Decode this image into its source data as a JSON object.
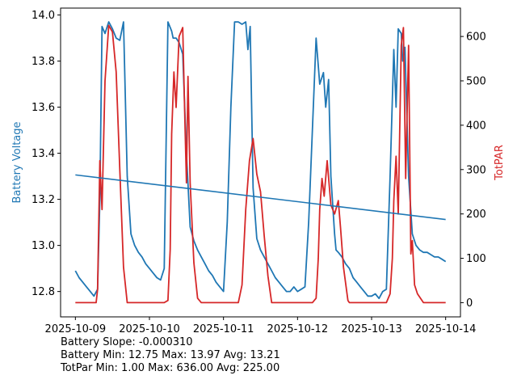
{
  "chart_data": {
    "type": "line",
    "title": "",
    "xlabel": "",
    "x_ticks": [
      "2025-10-09",
      "2025-10-10",
      "2025-10-11",
      "2025-10-12",
      "2025-10-13",
      "2025-10-14"
    ],
    "left_axis": {
      "label": "Battery Voltage",
      "color": "#1f77b4",
      "ylim": [
        12.69,
        14.03
      ],
      "ticks": [
        12.8,
        13.0,
        13.2,
        13.4,
        13.6,
        13.8,
        14.0
      ],
      "tick_labels": [
        "12.8",
        "13.0",
        "13.2",
        "13.4",
        "13.6",
        "13.8",
        "14.0"
      ]
    },
    "right_axis": {
      "label": "TotPAR",
      "color": "#d62728",
      "ylim": [
        -32,
        664
      ],
      "ticks": [
        0,
        100,
        200,
        300,
        400,
        500,
        600
      ],
      "tick_labels": [
        "0",
        "100",
        "200",
        "300",
        "400",
        "500",
        "600"
      ]
    },
    "xlim_days": [
      -0.2,
      5.2
    ],
    "series": [
      {
        "name": "Battery Voltage",
        "axis": "left",
        "color": "#1f77b4",
        "x_days": [
          0.0,
          0.05,
          0.1,
          0.15,
          0.2,
          0.25,
          0.3,
          0.33,
          0.36,
          0.4,
          0.45,
          0.5,
          0.55,
          0.6,
          0.65,
          0.7,
          0.75,
          0.8,
          0.85,
          0.9,
          0.95,
          1.0,
          1.05,
          1.1,
          1.15,
          1.2,
          1.25,
          1.3,
          1.32,
          1.36,
          1.4,
          1.45,
          1.5,
          1.55,
          1.6,
          1.65,
          1.7,
          1.75,
          1.8,
          1.85,
          1.9,
          1.95,
          2.0,
          2.05,
          2.1,
          2.15,
          2.2,
          2.25,
          2.3,
          2.33,
          2.36,
          2.4,
          2.45,
          2.5,
          2.55,
          2.6,
          2.65,
          2.7,
          2.75,
          2.8,
          2.85,
          2.9,
          2.95,
          3.0,
          3.05,
          3.1,
          3.15,
          3.2,
          3.25,
          3.3,
          3.35,
          3.38,
          3.42,
          3.45,
          3.5,
          3.52,
          3.55,
          3.6,
          3.65,
          3.7,
          3.75,
          3.8,
          3.85,
          3.9,
          3.95,
          4.0,
          4.05,
          4.1,
          4.15,
          4.2,
          4.25,
          4.3,
          4.33,
          4.36,
          4.4,
          4.42,
          4.45,
          4.5,
          4.55,
          4.6,
          4.65,
          4.7,
          4.75,
          4.8,
          4.85,
          4.9,
          4.95,
          5.0
        ],
        "values": [
          12.89,
          12.86,
          12.84,
          12.82,
          12.8,
          12.78,
          12.81,
          13.2,
          13.95,
          13.92,
          13.97,
          13.94,
          13.9,
          13.89,
          13.97,
          13.3,
          13.05,
          13.0,
          12.97,
          12.95,
          12.92,
          12.9,
          12.88,
          12.86,
          12.85,
          12.9,
          13.97,
          13.93,
          13.9,
          13.9,
          13.88,
          13.83,
          13.4,
          13.08,
          13.02,
          12.98,
          12.95,
          12.92,
          12.89,
          12.87,
          12.84,
          12.82,
          12.8,
          13.1,
          13.6,
          13.97,
          13.97,
          13.96,
          13.97,
          13.85,
          13.95,
          13.25,
          13.03,
          12.98,
          12.95,
          12.92,
          12.89,
          12.86,
          12.84,
          12.82,
          12.8,
          12.8,
          12.82,
          12.8,
          12.81,
          12.82,
          13.1,
          13.5,
          13.9,
          13.7,
          13.75,
          13.6,
          13.72,
          13.3,
          13.05,
          12.98,
          12.97,
          12.95,
          12.92,
          12.9,
          12.86,
          12.84,
          12.82,
          12.8,
          12.78,
          12.78,
          12.79,
          12.77,
          12.8,
          12.81,
          13.3,
          13.85,
          13.6,
          13.94,
          13.92,
          13.8,
          13.86,
          13.3,
          13.05,
          13.0,
          12.98,
          12.97,
          12.97,
          12.96,
          12.95,
          12.95,
          12.94,
          12.93
        ]
      },
      {
        "name": "TotPAR",
        "axis": "right",
        "color": "#d62728",
        "x_days": [
          0.0,
          0.2,
          0.25,
          0.28,
          0.3,
          0.33,
          0.36,
          0.4,
          0.45,
          0.5,
          0.55,
          0.6,
          0.65,
          0.7,
          1.0,
          1.2,
          1.25,
          1.28,
          1.3,
          1.33,
          1.36,
          1.4,
          1.45,
          1.48,
          1.5,
          1.52,
          1.55,
          1.6,
          1.65,
          1.7,
          2.0,
          2.2,
          2.25,
          2.3,
          2.35,
          2.4,
          2.45,
          2.5,
          2.55,
          2.6,
          2.65,
          3.0,
          3.2,
          3.25,
          3.28,
          3.3,
          3.33,
          3.36,
          3.4,
          3.45,
          3.5,
          3.55,
          3.58,
          3.62,
          3.68,
          3.7,
          4.0,
          4.2,
          4.25,
          4.28,
          4.3,
          4.33,
          4.36,
          4.4,
          4.43,
          4.46,
          4.5,
          4.53,
          4.55,
          4.58,
          4.62,
          4.7,
          5.0
        ],
        "values": [
          0,
          0,
          0,
          0,
          30,
          320,
          210,
          500,
          625,
          610,
          520,
          300,
          80,
          0,
          0,
          0,
          5,
          120,
          380,
          520,
          440,
          600,
          620,
          400,
          270,
          510,
          270,
          90,
          10,
          0,
          0,
          0,
          40,
          210,
          320,
          370,
          290,
          250,
          150,
          60,
          0,
          0,
          0,
          10,
          100,
          210,
          280,
          240,
          320,
          220,
          200,
          230,
          170,
          80,
          5,
          0,
          0,
          0,
          20,
          100,
          230,
          330,
          200,
          580,
          620,
          280,
          580,
          110,
          140,
          40,
          20,
          0,
          0
        ]
      }
    ]
  },
  "stats": {
    "slope": "Battery Slope: -0.000310",
    "battery": "Battery Min: 12.75 Max: 13.97 Avg: 13.21",
    "totpar": "TotPar Min: 1.00 Max: 636.00 Avg: 225.00"
  }
}
